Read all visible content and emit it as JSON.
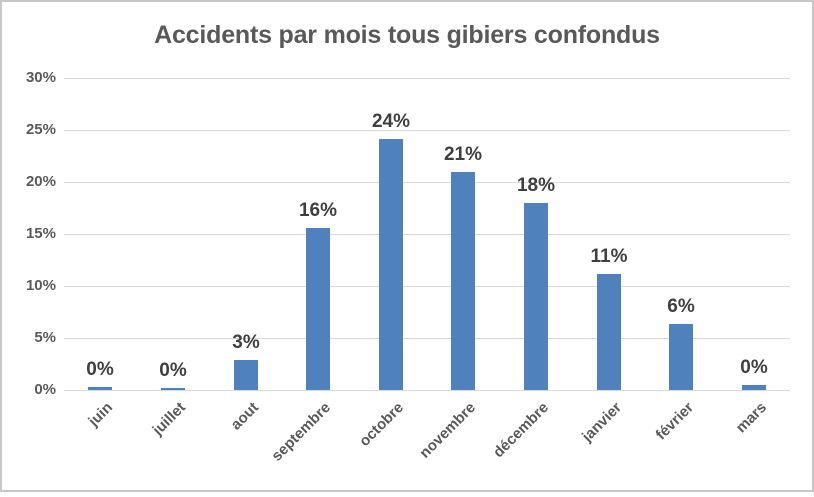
{
  "chart_data": {
    "type": "bar",
    "title": "Accidents par mois tous gibiers confondus",
    "categories": [
      "juin",
      "juillet",
      "aout",
      "septembre",
      "octobre",
      "novembre",
      "décembre",
      "janvier",
      "février",
      "mars"
    ],
    "values": [
      0.3,
      0.2,
      2.9,
      15.6,
      24.1,
      21.0,
      18.0,
      11.2,
      6.3,
      0.5
    ],
    "data_labels": [
      "0%",
      "0%",
      "3%",
      "16%",
      "24%",
      "21%",
      "18%",
      "11%",
      "6%",
      "0%"
    ],
    "xlabel": "",
    "ylabel": "",
    "ylim": [
      0,
      30
    ],
    "ytick_step": 5,
    "ytick_labels": [
      "0%",
      "5%",
      "10%",
      "15%",
      "20%",
      "25%",
      "30%"
    ],
    "grid": true,
    "legend": false,
    "x_label_rotation_deg": 45
  },
  "colors": {
    "bar": "#4f81bd",
    "gridline": "#d9d9d9",
    "axis_label": "#595959",
    "data_label": "#3f3f3f",
    "title": "#595959",
    "frame_border": "#c7c7c7",
    "background": "#ffffff"
  }
}
